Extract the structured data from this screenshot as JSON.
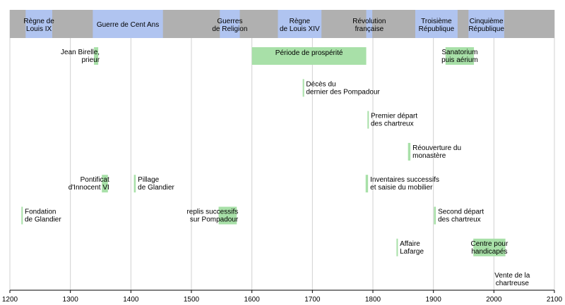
{
  "chart_data": {
    "type": "timeline",
    "title": "",
    "xlim": [
      1200,
      2100
    ],
    "ticks": [
      "1200",
      "1300",
      "1400",
      "1500",
      "1600",
      "1700",
      "1800",
      "1900",
      "2000",
      "2100"
    ],
    "grid": true,
    "colors": {
      "period_bar": "#b0b0b0",
      "period_highlight": "#b0c4f0",
      "event": "#a8e0a8",
      "gridline": "#d0d0d0"
    },
    "periods": [
      {
        "label": [
          "Règne de",
          "Louis IX"
        ],
        "start": 1226,
        "end": 1270
      },
      {
        "label": [
          "Guerre de Cent Ans"
        ],
        "start": 1337,
        "end": 1453
      },
      {
        "label": [
          "Guerres",
          "de Religion"
        ],
        "start": 1547,
        "end": 1580
      },
      {
        "label": [
          "Règne",
          "de Louis XIV"
        ],
        "start": 1643,
        "end": 1715
      },
      {
        "label": [
          "Révolution",
          "française"
        ],
        "start": 1789,
        "end": 1799
      },
      {
        "label": [
          "Troisième",
          "République"
        ],
        "start": 1870,
        "end": 1940
      },
      {
        "label": [
          "Cinquième",
          "République"
        ],
        "start": 1958,
        "end": 2017
      }
    ],
    "events": [
      {
        "row": 1,
        "start": 1339,
        "end": 1346,
        "label": [
          "Jean Birelle,",
          "prieur"
        ],
        "side": "left"
      },
      {
        "row": 1,
        "start": 1600,
        "end": 1789,
        "label": [
          "Période de prospérité"
        ],
        "side": "inside"
      },
      {
        "row": 1,
        "start": 1920,
        "end": 1967,
        "label": [
          "Sanatorium",
          "puis aérium"
        ],
        "side": "inside"
      },
      {
        "row": 2,
        "start": 1684,
        "end": 1686,
        "label": [
          "Décès du",
          "dernier des Pompadour"
        ],
        "side": "right"
      },
      {
        "row": 3,
        "start": 1791,
        "end": 1793,
        "label": [
          "Premier départ",
          "des chartreux"
        ],
        "side": "right"
      },
      {
        "row": 4,
        "start": 1858,
        "end": 1862,
        "label": [
          "Réouverture du",
          "monastère"
        ],
        "side": "right"
      },
      {
        "row": 5,
        "start": 1352,
        "end": 1362,
        "label": [
          "Pontificat",
          "d'Innocent VI"
        ],
        "side": "left"
      },
      {
        "row": 5,
        "start": 1405,
        "end": 1408,
        "label": [
          "Pillage",
          "de Glandier"
        ],
        "side": "right"
      },
      {
        "row": 5,
        "start": 1788,
        "end": 1792,
        "label": [
          "Inventaires successifs",
          "et saisie du mobilier"
        ],
        "side": "right"
      },
      {
        "row": 6,
        "start": 1219,
        "end": 1221,
        "label": [
          "Fondation",
          "de Glandier"
        ],
        "side": "right"
      },
      {
        "row": 6,
        "start": 1545,
        "end": 1575,
        "label": [
          "replis successifs",
          "sur Pompadour"
        ],
        "side": "left"
      },
      {
        "row": 6,
        "start": 1901,
        "end": 1904,
        "label": [
          "Second départ",
          "des chartreux"
        ],
        "side": "right"
      },
      {
        "row": 7,
        "start": 1839,
        "end": 1841,
        "label": [
          "Affaire",
          "Lafarge"
        ],
        "side": "right"
      },
      {
        "row": 7,
        "start": 1966,
        "end": 2019,
        "label": [
          "Centre pour",
          "handicapés"
        ],
        "side": "inside"
      },
      {
        "row": 8,
        "start": 2021,
        "end": 2022,
        "label": [
          "Vente de la",
          "chartreuse"
        ],
        "side": "label-only"
      }
    ]
  }
}
